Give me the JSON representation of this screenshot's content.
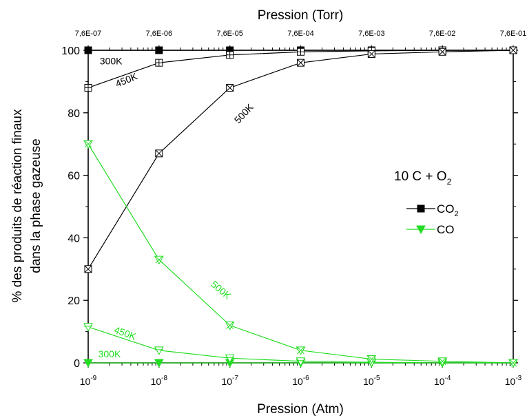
{
  "chart_data": {
    "type": "line",
    "xlabel": "Pression (Atm)",
    "ylabel_line1": "% des produits de réaction finaux",
    "ylabel_line2": "dans la phase gazeuse",
    "top_xlabel": "Pression (Torr)",
    "x_scale": "log",
    "xlim": [
      1e-09,
      0.001
    ],
    "ylim": [
      0,
      100
    ],
    "x": [
      1e-09,
      1e-08,
      1e-07,
      1e-06,
      1e-05,
      0.0001,
      0.001
    ],
    "x_ticks": [
      {
        "value": 1e-09,
        "base": "10",
        "exp": "-9"
      },
      {
        "value": 1e-08,
        "base": "10",
        "exp": "-8"
      },
      {
        "value": 1e-07,
        "base": "10",
        "exp": "-7"
      },
      {
        "value": 1e-06,
        "base": "10",
        "exp": "-6"
      },
      {
        "value": 1e-05,
        "base": "10",
        "exp": "-5"
      },
      {
        "value": 0.0001,
        "base": "10",
        "exp": "-4"
      },
      {
        "value": 0.001,
        "base": "10",
        "exp": "-3"
      }
    ],
    "top_ticks": [
      {
        "value": 1e-09,
        "label": "7,6E-07"
      },
      {
        "value": 1e-08,
        "label": "7,6E-06"
      },
      {
        "value": 1e-07,
        "label": "7,6E-05"
      },
      {
        "value": 1e-06,
        "label": "7,6E-04"
      },
      {
        "value": 1e-05,
        "label": "7,6E-03"
      },
      {
        "value": 0.0001,
        "label": "7,6E-02"
      },
      {
        "value": 0.001,
        "label": "7,6E-01"
      }
    ],
    "y_ticks": [
      0,
      20,
      40,
      60,
      80,
      100
    ],
    "colors": {
      "co2": "#000000",
      "co": "#22dd22"
    },
    "series": [
      {
        "product": "CO2",
        "temperature": "300K",
        "values": [
          100,
          100,
          100,
          100,
          100,
          100,
          100
        ]
      },
      {
        "product": "CO2",
        "temperature": "450K",
        "values": [
          88,
          96,
          98.5,
          99.5,
          99.8,
          100,
          100
        ]
      },
      {
        "product": "CO2",
        "temperature": "500K",
        "values": [
          30,
          67,
          88,
          96,
          98.8,
          99.5,
          100
        ]
      },
      {
        "product": "CO",
        "temperature": "300K",
        "values": [
          0,
          0,
          0,
          0,
          0,
          0,
          0
        ]
      },
      {
        "product": "CO",
        "temperature": "450K",
        "values": [
          11.5,
          4,
          1.5,
          0.5,
          0.2,
          0,
          0
        ]
      },
      {
        "product": "CO",
        "temperature": "500K",
        "values": [
          70,
          33,
          12,
          4,
          1.2,
          0.5,
          0
        ]
      }
    ],
    "annotations": [
      {
        "text": "300K",
        "x": 2.1e-09,
        "y": 95.5,
        "color": "black",
        "rotate": 0
      },
      {
        "text": "450K",
        "x": 3.6e-09,
        "y": 89.5,
        "color": "black",
        "rotate": -22
      },
      {
        "text": "500K",
        "x": 1.7e-07,
        "y": 79,
        "color": "black",
        "rotate": -47
      },
      {
        "text": "500K",
        "x": 7e-08,
        "y": 22.5,
        "color": "green",
        "rotate": 40
      },
      {
        "text": "450K",
        "x": 3.2e-09,
        "y": 8.5,
        "color": "green",
        "rotate": 20
      },
      {
        "text": "300K",
        "x": 2e-09,
        "y": 1.8,
        "color": "green",
        "rotate": 0
      }
    ],
    "legend": {
      "title_main": "10 C + O",
      "title_sub": "2",
      "placement": "right",
      "entries": [
        {
          "label": "CO",
          "sub": "2",
          "key": "co2"
        },
        {
          "label": "CO",
          "sub": "",
          "key": "co"
        }
      ]
    }
  }
}
